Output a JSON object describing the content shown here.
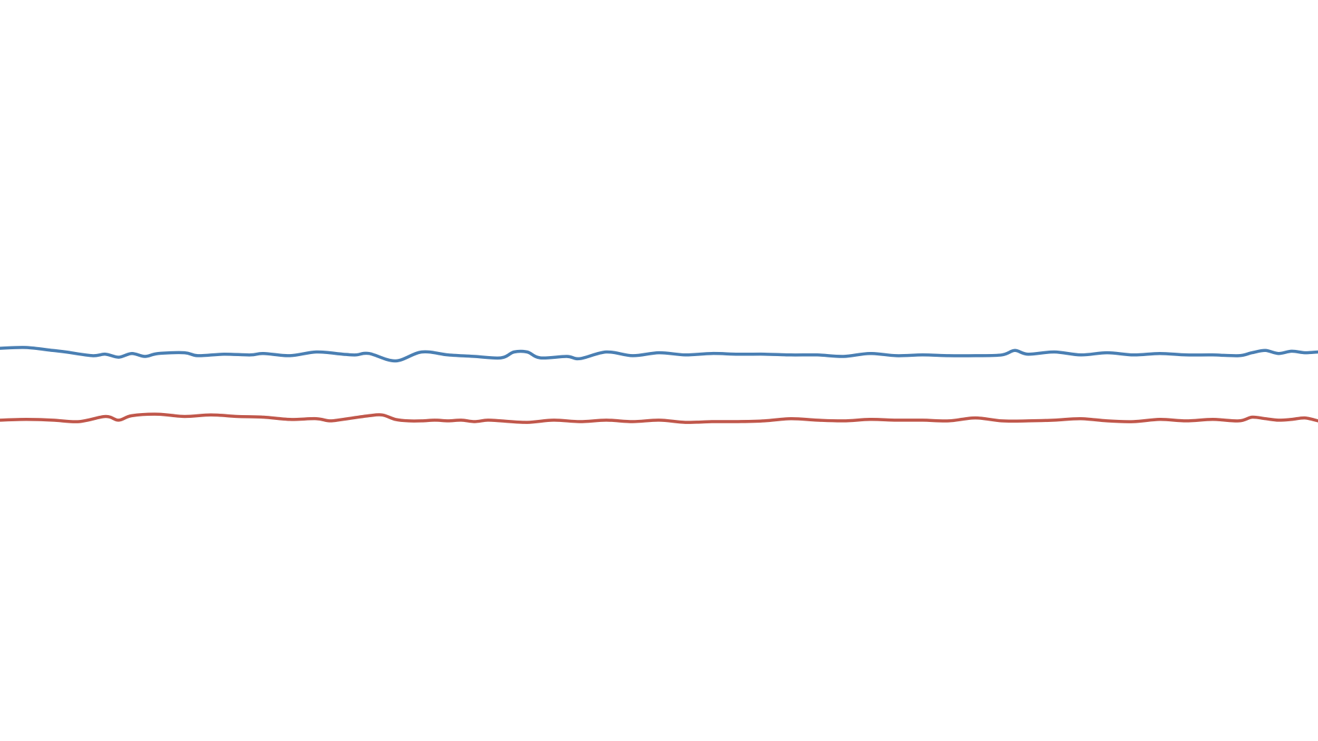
{
  "chart_data": {
    "type": "line",
    "title": "",
    "xlabel": "",
    "ylabel": "",
    "xlim": [
      0,
      100
    ],
    "ylim": [
      0,
      100
    ],
    "grid": false,
    "legend": "none",
    "axes_visible": false,
    "series": [
      {
        "color": "#4a7fb3",
        "x": [
          0,
          2,
          4,
          5,
          7,
          8,
          9,
          10,
          11,
          12,
          14,
          15,
          17,
          19,
          20,
          22,
          24,
          26,
          27,
          28,
          30,
          32,
          34,
          36,
          38,
          39,
          40,
          41,
          43,
          44,
          46,
          48,
          50,
          52,
          54,
          56,
          58,
          60,
          62,
          64,
          66,
          68,
          70,
          72,
          74,
          76,
          77,
          78,
          80,
          82,
          84,
          86,
          88,
          90,
          92,
          94,
          95,
          96,
          97,
          98,
          99,
          100
        ],
        "values": [
          53.0,
          53.1,
          52.7,
          52.5,
          52.0,
          52.2,
          51.8,
          52.3,
          51.9,
          52.3,
          52.4,
          52.0,
          52.2,
          52.1,
          52.3,
          52.0,
          52.5,
          52.2,
          52.1,
          52.3,
          51.3,
          52.5,
          52.1,
          51.9,
          51.7,
          52.5,
          52.5,
          51.7,
          51.9,
          51.6,
          52.5,
          52.0,
          52.4,
          52.1,
          52.3,
          52.2,
          52.2,
          52.1,
          52.1,
          51.9,
          52.3,
          52.0,
          52.1,
          52.0,
          52.0,
          52.1,
          52.7,
          52.2,
          52.5,
          52.1,
          52.4,
          52.1,
          52.3,
          52.1,
          52.1,
          52.0,
          52.4,
          52.7,
          52.3,
          52.6,
          52.4,
          52.5
        ]
      },
      {
        "color": "#c0574b",
        "x": [
          0,
          2,
          4,
          6,
          8,
          9,
          10,
          12,
          14,
          16,
          18,
          20,
          22,
          24,
          25,
          26,
          28,
          29,
          30,
          31,
          32,
          33,
          34,
          35,
          36,
          37,
          38,
          40,
          42,
          44,
          46,
          48,
          50,
          52,
          54,
          56,
          58,
          60,
          62,
          64,
          66,
          68,
          70,
          72,
          74,
          76,
          78,
          80,
          82,
          84,
          86,
          88,
          90,
          92,
          94,
          95,
          96,
          97,
          98,
          99,
          100
        ],
        "values": [
          43.3,
          43.4,
          43.3,
          43.1,
          43.8,
          43.3,
          43.9,
          44.1,
          43.8,
          44.0,
          43.8,
          43.7,
          43.4,
          43.5,
          43.2,
          43.4,
          43.9,
          44.0,
          43.4,
          43.2,
          43.2,
          43.3,
          43.2,
          43.3,
          43.1,
          43.3,
          43.2,
          43.0,
          43.3,
          43.1,
          43.3,
          43.1,
          43.3,
          43.0,
          43.1,
          43.1,
          43.2,
          43.5,
          43.3,
          43.2,
          43.4,
          43.3,
          43.3,
          43.2,
          43.6,
          43.2,
          43.2,
          43.3,
          43.5,
          43.2,
          43.1,
          43.4,
          43.2,
          43.4,
          43.2,
          43.7,
          43.5,
          43.3,
          43.4,
          43.6,
          43.2
        ]
      }
    ]
  }
}
